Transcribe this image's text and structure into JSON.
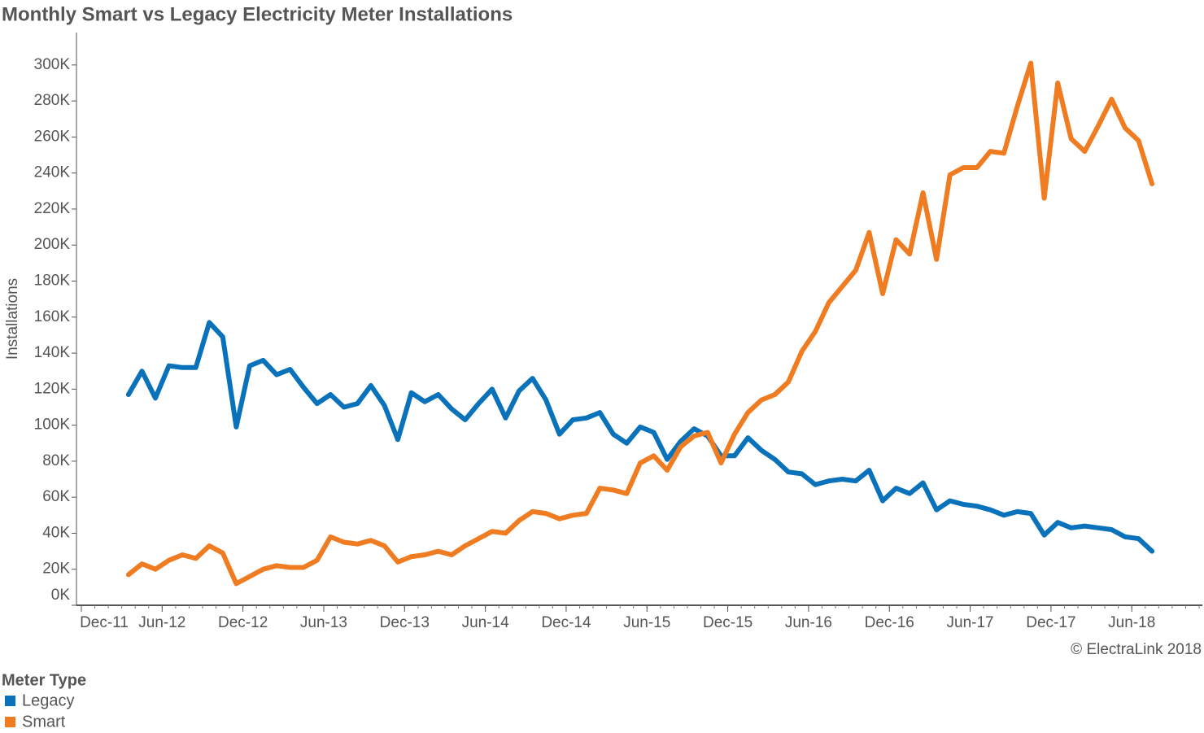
{
  "chart_data": {
    "type": "line",
    "title": "Monthly Smart vs Legacy Electricity Meter Installations",
    "y_label": "Installations",
    "annotation": "© ElectraLink 2018",
    "legend_title": "Meter Type",
    "legend": "bottom-left",
    "x": [
      "Mar-12",
      "Apr-12",
      "May-12",
      "Jun-12",
      "Jul-12",
      "Aug-12",
      "Sep-12",
      "Oct-12",
      "Nov-12",
      "Dec-12",
      "Jan-13",
      "Feb-13",
      "Mar-13",
      "Apr-13",
      "May-13",
      "Jun-13",
      "Jul-13",
      "Aug-13",
      "Sep-13",
      "Oct-13",
      "Nov-13",
      "Dec-13",
      "Jan-14",
      "Feb-14",
      "Mar-14",
      "Apr-14",
      "May-14",
      "Jun-14",
      "Jul-14",
      "Aug-14",
      "Sep-14",
      "Oct-14",
      "Nov-14",
      "Dec-14",
      "Jan-15",
      "Feb-15",
      "Mar-15",
      "Apr-15",
      "May-15",
      "Jun-15",
      "Jul-15",
      "Aug-15",
      "Sep-15",
      "Oct-15",
      "Nov-15",
      "Dec-15",
      "Jan-16",
      "Feb-16",
      "Mar-16",
      "Apr-16",
      "May-16",
      "Jun-16",
      "Jul-16",
      "Aug-16",
      "Sep-16",
      "Oct-16",
      "Nov-16",
      "Dec-16",
      "Jan-17",
      "Feb-17",
      "Mar-17",
      "Apr-17",
      "May-17",
      "Jun-17",
      "Jul-17",
      "Aug-17",
      "Sep-17",
      "Oct-17",
      "Nov-17",
      "Dec-17",
      "Jan-18",
      "Feb-18",
      "Mar-18",
      "Apr-18",
      "May-18",
      "Jun-18",
      "Jul-18"
    ],
    "xlim": [
      "Dec-11",
      "Nov-18"
    ],
    "xticks": [
      "Dec-11",
      "Jun-12",
      "Dec-12",
      "Jun-13",
      "Dec-13",
      "Jun-14",
      "Dec-14",
      "Jun-15",
      "Dec-15",
      "Jun-16",
      "Dec-16",
      "Jun-17",
      "Dec-17",
      "Jun-18"
    ],
    "ylim": [
      0,
      318000
    ],
    "yticks": [
      {
        "value": 0,
        "label": "0K"
      },
      {
        "value": 20000,
        "label": "20K"
      },
      {
        "value": 40000,
        "label": "40K"
      },
      {
        "value": 60000,
        "label": "60K"
      },
      {
        "value": 80000,
        "label": "80K"
      },
      {
        "value": 100000,
        "label": "100K"
      },
      {
        "value": 120000,
        "label": "120K"
      },
      {
        "value": 140000,
        "label": "140K"
      },
      {
        "value": 160000,
        "label": "160K"
      },
      {
        "value": 180000,
        "label": "180K"
      },
      {
        "value": 200000,
        "label": "200K"
      },
      {
        "value": 220000,
        "label": "220K"
      },
      {
        "value": 240000,
        "label": "240K"
      },
      {
        "value": 260000,
        "label": "260K"
      },
      {
        "value": 280000,
        "label": "280K"
      },
      {
        "value": 300000,
        "label": "300K"
      }
    ],
    "grid": false,
    "series": [
      {
        "name": "Legacy",
        "color": "#0a72ba",
        "values": [
          117000,
          130000,
          115000,
          133000,
          132000,
          132000,
          157000,
          149000,
          99000,
          133000,
          136000,
          128000,
          131000,
          121000,
          112000,
          117000,
          110000,
          112000,
          122000,
          111000,
          92000,
          118000,
          113000,
          117000,
          109000,
          103000,
          112000,
          120000,
          104000,
          119000,
          126000,
          114000,
          95000,
          103000,
          104000,
          107000,
          95000,
          90000,
          99000,
          96000,
          81000,
          91000,
          98000,
          94000,
          83000,
          83000,
          93000,
          86000,
          81000,
          74000,
          73000,
          67000,
          69000,
          70000,
          69000,
          75000,
          58000,
          65000,
          62000,
          68000,
          53000,
          58000,
          56000,
          55000,
          53000,
          50000,
          52000,
          51000,
          39000,
          46000,
          43000,
          44000,
          43000,
          42000,
          38000,
          37000,
          30000
        ]
      },
      {
        "name": "Smart",
        "color": "#f07c22",
        "values": [
          17000,
          23000,
          20000,
          25000,
          28000,
          26000,
          33000,
          29000,
          12000,
          16000,
          20000,
          22000,
          21000,
          21000,
          25000,
          38000,
          35000,
          34000,
          36000,
          33000,
          24000,
          27000,
          28000,
          30000,
          28000,
          33000,
          37000,
          41000,
          40000,
          47000,
          52000,
          51000,
          48000,
          50000,
          51000,
          65000,
          64000,
          62000,
          79000,
          83000,
          75000,
          88000,
          94000,
          96000,
          79000,
          95000,
          107000,
          114000,
          117000,
          124000,
          141000,
          152000,
          168000,
          177000,
          186000,
          207000,
          173000,
          203000,
          195000,
          229000,
          192000,
          239000,
          243000,
          243000,
          252000,
          251000,
          277000,
          301000,
          226000,
          290000,
          259000,
          252000,
          266000,
          281000,
          265000,
          258000,
          234000
        ]
      }
    ]
  }
}
